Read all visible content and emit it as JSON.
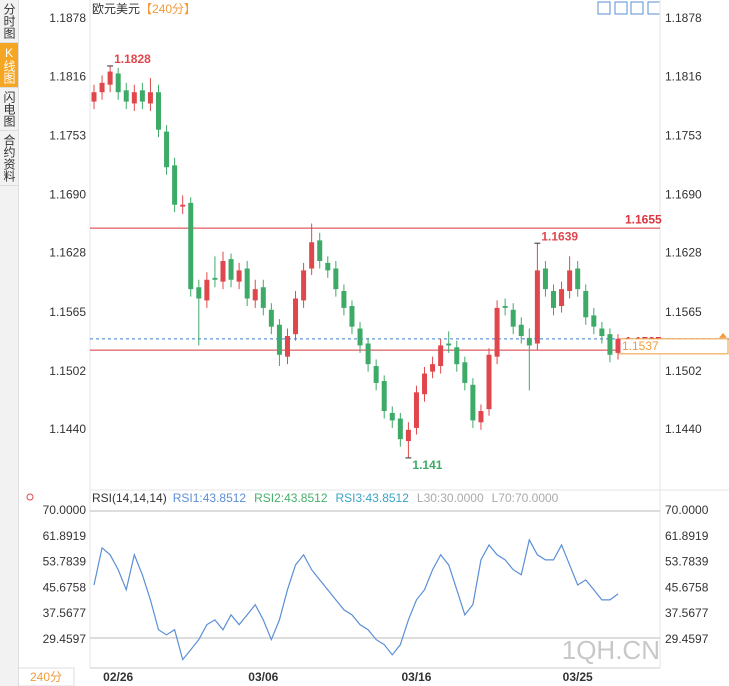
{
  "tabs": [
    "分时图",
    "K线图",
    "闪电图",
    "合约资料"
  ],
  "active_tab": 1,
  "period_label": "240分",
  "watermark": "1QH.CN",
  "chart_data": [
    {
      "type": "candlestick",
      "title": "欧元美元",
      "subtitle": "【240分】",
      "categories": [
        null,
        null,
        null,
        "02/26",
        null,
        null,
        null,
        null,
        null,
        null,
        null,
        null,
        null,
        null,
        null,
        null,
        null,
        null,
        null,
        null,
        null,
        "03/06",
        null,
        null,
        null,
        null,
        null,
        null,
        null,
        null,
        null,
        null,
        null,
        null,
        null,
        null,
        null,
        null,
        null,
        null,
        "03/16",
        null,
        null,
        null,
        null,
        null,
        null,
        null,
        null,
        null,
        null,
        null,
        null,
        null,
        null,
        null,
        null,
        null,
        null,
        null,
        "03/25",
        null,
        null,
        null,
        null,
        null
      ],
      "open": [
        1.179,
        1.18,
        1.1808,
        1.182,
        1.1802,
        1.1788,
        1.1802,
        1.1788,
        1.18,
        1.1758,
        1.1722,
        1.1678,
        1.1682,
        1.1592,
        1.1578,
        1.1602,
        1.1598,
        1.1622,
        1.1598,
        1.1612,
        1.1578,
        1.1592,
        1.1568,
        1.1552,
        1.1518,
        1.1542,
        1.1578,
        1.1612,
        1.1642,
        1.1618,
        1.1612,
        1.1588,
        1.1572,
        1.1548,
        1.1532,
        1.1508,
        1.1492,
        1.1458,
        1.1452,
        1.1428,
        1.1442,
        1.1478,
        1.1502,
        1.1508,
        1.1532,
        1.1528,
        1.1512,
        1.1488,
        1.1448,
        1.1462,
        1.1518,
        1.1572,
        1.1568,
        1.1552,
        1.1538,
        1.1532,
        1.1612,
        1.1588,
        1.1572,
        1.1588,
        1.1612,
        1.1588,
        1.1562,
        1.1548,
        1.1542,
        1.1522
      ],
      "high": [
        1.1808,
        1.1818,
        1.1828,
        1.1826,
        1.181,
        1.1808,
        1.181,
        1.1815,
        1.1808,
        1.1765,
        1.173,
        1.169,
        1.1688,
        1.16,
        1.1608,
        1.1625,
        1.163,
        1.1628,
        1.1618,
        1.162,
        1.16,
        1.16,
        1.1575,
        1.1558,
        1.1548,
        1.1588,
        1.1618,
        1.166,
        1.165,
        1.1625,
        1.162,
        1.1595,
        1.1578,
        1.1555,
        1.1538,
        1.1515,
        1.1498,
        1.1465,
        1.1458,
        1.1448,
        1.1487,
        1.1507,
        1.1518,
        1.1537,
        1.1545,
        1.1535,
        1.1518,
        1.1495,
        1.1467,
        1.1527,
        1.1578,
        1.158,
        1.1575,
        1.156,
        1.1548,
        1.1639,
        1.162,
        1.1595,
        1.1598,
        1.1625,
        1.162,
        1.1595,
        1.157,
        1.1555,
        1.1548,
        1.1542
      ],
      "low": [
        1.1782,
        1.1792,
        1.18,
        1.1792,
        1.1782,
        1.178,
        1.1782,
        1.178,
        1.1752,
        1.1712,
        1.1672,
        1.167,
        1.1582,
        1.153,
        1.157,
        1.1592,
        1.159,
        1.1592,
        1.159,
        1.1572,
        1.157,
        1.1562,
        1.1542,
        1.1508,
        1.151,
        1.1535,
        1.157,
        1.1605,
        1.1612,
        1.1602,
        1.1582,
        1.1562,
        1.1542,
        1.1522,
        1.1502,
        1.1482,
        1.1452,
        1.1442,
        1.1422,
        1.141,
        1.1435,
        1.147,
        1.1495,
        1.15,
        1.1522,
        1.1502,
        1.1482,
        1.1442,
        1.144,
        1.1455,
        1.151,
        1.1562,
        1.1542,
        1.1532,
        1.1482,
        1.1525,
        1.1582,
        1.1562,
        1.1565,
        1.158,
        1.1582,
        1.1552,
        1.1542,
        1.1532,
        1.1512,
        1.1515
      ],
      "close": [
        1.18,
        1.181,
        1.1822,
        1.18,
        1.179,
        1.18,
        1.179,
        1.18,
        1.176,
        1.172,
        1.168,
        1.168,
        1.159,
        1.158,
        1.16,
        1.16,
        1.162,
        1.16,
        1.161,
        1.158,
        1.159,
        1.157,
        1.155,
        1.152,
        1.154,
        1.158,
        1.161,
        1.164,
        1.162,
        1.161,
        1.159,
        1.157,
        1.155,
        1.153,
        1.151,
        1.149,
        1.146,
        1.145,
        1.143,
        1.144,
        1.148,
        1.15,
        1.151,
        1.153,
        1.153,
        1.151,
        1.149,
        1.145,
        1.146,
        1.152,
        1.157,
        1.157,
        1.155,
        1.154,
        1.153,
        1.161,
        1.159,
        1.157,
        1.159,
        1.161,
        1.159,
        1.156,
        1.155,
        1.154,
        1.152,
        1.1537
      ],
      "up_color": "#e0474c",
      "down_color": "#3daa68",
      "ylim": [
        1.1379,
        1.1893
      ],
      "yticks": [
        1.1878,
        1.1816,
        1.1753,
        {
          "value": 1.169,
          "label": "1.1690"
        },
        1.1628,
        1.1565,
        1.1502,
        {
          "value": 1.144,
          "label": "1.1440"
        }
      ],
      "annotations": [
        1.1828,
        1.1639,
        1.141
      ],
      "hlines": [
        {
          "value": 1.1655,
          "color": "#d9363e"
        },
        {
          "value": 1.1525,
          "color": "#d9363e"
        }
      ],
      "last_price": 1.1537,
      "last_color": "#f29b38",
      "last_line_color": "#3b7dd8"
    },
    {
      "type": "line",
      "legend_title": "RSI(14,14,14)",
      "legend": [
        {
          "text": "RSI1:43.8512",
          "color": "#5b8fd6"
        },
        {
          "text": "RSI2:43.8512",
          "color": "#45b06a"
        },
        {
          "text": "RSI3:43.8512",
          "color": "#3aa3c9"
        },
        {
          "text": "L30:30.0000",
          "color": "#aaaaaa"
        },
        {
          "text": "L70:70.0000",
          "color": "#aaaaaa"
        }
      ],
      "series": [
        {
          "color": "#5b8fd6",
          "values": [
            46.7,
            58.4,
            56.2,
            51.5,
            45.2,
            56.2,
            49.9,
            42.0,
            32.6,
            31.0,
            32.6,
            23.2,
            26.3,
            29.5,
            34.2,
            35.7,
            32.6,
            37.3,
            34.2,
            37.3,
            40.5,
            35.7,
            29.5,
            35.7,
            45.2,
            53.0,
            56.2,
            51.5,
            48.3,
            45.2,
            42.0,
            38.9,
            37.3,
            34.2,
            32.6,
            29.5,
            27.9,
            24.7,
            27.9,
            35.7,
            42.0,
            45.2,
            51.5,
            56.2,
            53.0,
            45.2,
            37.3,
            40.5,
            54.6,
            59.3,
            56.2,
            54.6,
            51.5,
            49.9,
            60.9,
            56.2,
            54.6,
            54.6,
            59.3,
            53.0,
            46.7,
            48.3,
            45.2,
            42.0,
            42.0,
            43.9
          ]
        }
      ],
      "levels": [
        30,
        70
      ],
      "ylim": [
        21.5,
        74.4
      ],
      "yticks": [
        {
          "value": 70,
          "label": "70.0000"
        },
        {
          "value": 61.8919,
          "label": "61.8919"
        },
        {
          "value": 53.7839,
          "label": "53.7839"
        },
        {
          "value": 45.6758,
          "label": "45.6758"
        },
        {
          "value": 37.5677,
          "label": "37.5677"
        },
        {
          "value": 29.4597,
          "label": "29.4597"
        }
      ]
    }
  ]
}
